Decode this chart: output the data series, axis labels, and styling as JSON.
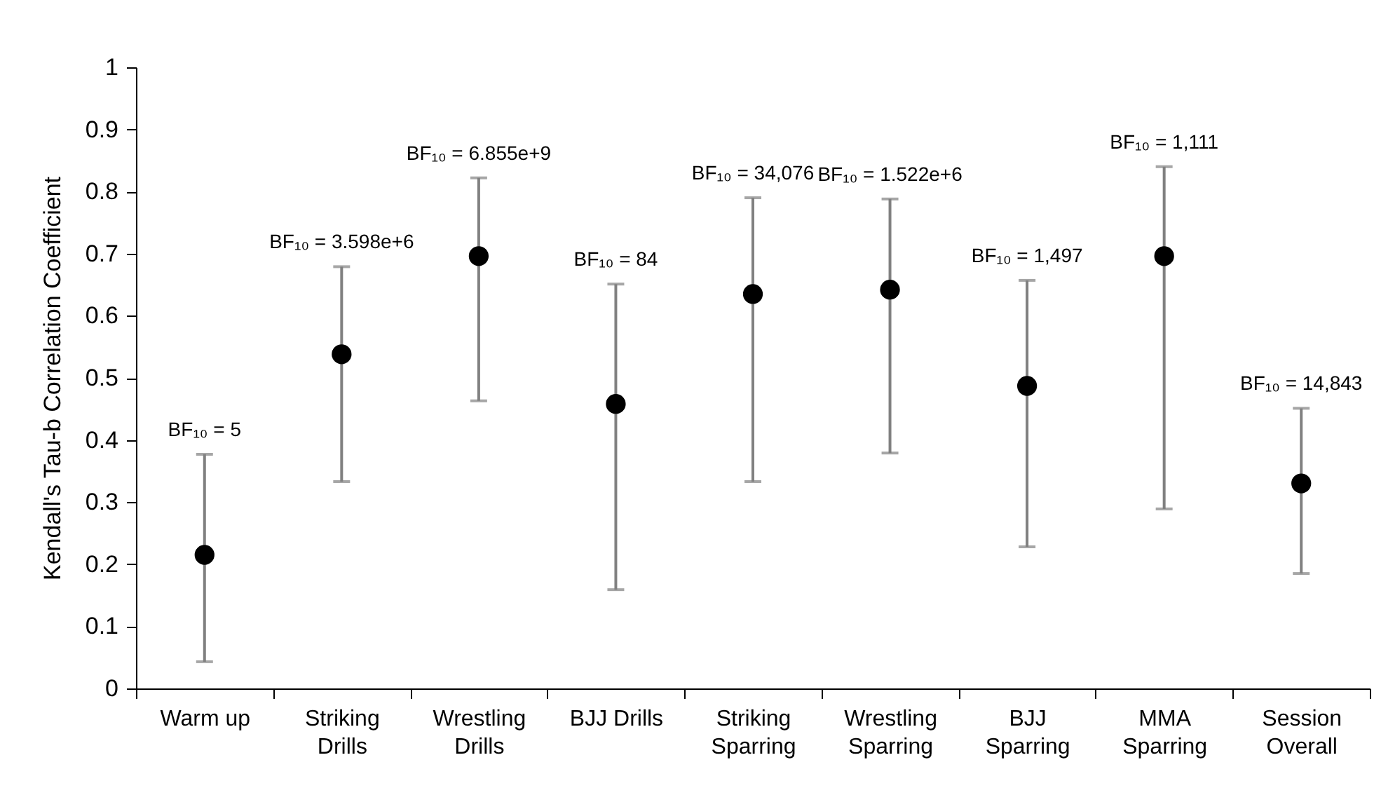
{
  "chart_data": {
    "type": "scatter",
    "ylabel": "Kendall's Tau-b Correlation Coefficient",
    "categories": [
      "Warm up",
      "Striking Drills",
      "Wrestling Drills",
      "BJJ Drills",
      "Striking Sparring",
      "Wrestling Sparring",
      "BJJ Sparring",
      "MMA Sparring",
      "Session Overall"
    ],
    "values": [
      0.215,
      0.538,
      0.696,
      0.458,
      0.635,
      0.642,
      0.487,
      0.696,
      0.33
    ],
    "errors": [
      [
        0.043,
        0.377
      ],
      [
        0.333,
        0.679
      ],
      [
        0.463,
        0.822
      ],
      [
        0.159,
        0.651
      ],
      [
        0.333,
        0.79
      ],
      [
        0.379,
        0.788
      ],
      [
        0.228,
        0.657
      ],
      [
        0.289,
        0.84
      ],
      [
        0.185,
        0.451
      ]
    ],
    "color": "#000000",
    "marker": "circle",
    "ylim": [
      0,
      1
    ],
    "yticks": [
      0,
      0.1,
      0.2,
      0.3,
      0.4,
      0.5,
      0.6,
      0.7,
      0.8,
      0.9,
      1
    ],
    "grid": false,
    "annotations": [
      {
        "text": "BF₁₀ = 5",
        "x": "Warm up",
        "y": 0.377
      },
      {
        "text": "BF₁₀ = 3.598e+6",
        "x": "Striking Drills",
        "y": 0.679
      },
      {
        "text": "BF₁₀ = 6.855e+9",
        "x": "Wrestling Drills",
        "y": 0.822
      },
      {
        "text": "BF₁₀ = 84",
        "x": "BJJ Drills",
        "y": 0.651
      },
      {
        "text": "BF₁₀ = 34,076",
        "x": "Striking Sparring",
        "y": 0.79
      },
      {
        "text": "BF₁₀ = 1.522e+6",
        "x": "Wrestling Sparring",
        "y": 0.788
      },
      {
        "text": "BF₁₀ = 1,497",
        "x": "BJJ Sparring",
        "y": 0.657
      },
      {
        "text": "BF₁₀ = 1,111",
        "x": "MMA Sparring",
        "y": 0.84
      },
      {
        "text": "BF₁₀ = 14,843",
        "x": "Session Overall",
        "y": 0.451
      }
    ]
  }
}
